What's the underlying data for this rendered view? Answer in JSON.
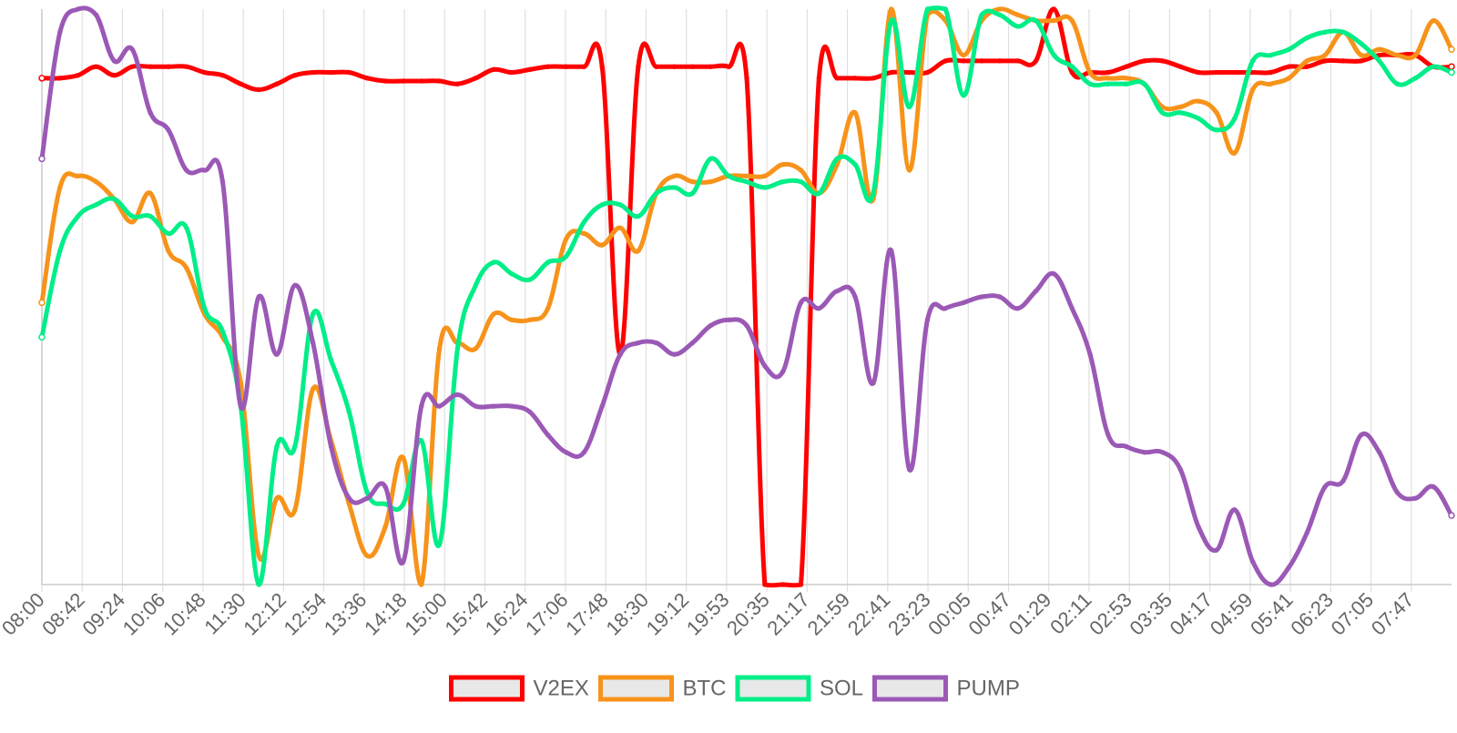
{
  "chart_data": {
    "type": "line",
    "x_tick_labels": [
      "08:00",
      "08:42",
      "09:24",
      "10:06",
      "10:48",
      "11:30",
      "12:12",
      "12:54",
      "13:36",
      "14:18",
      "15:00",
      "15:42",
      "16:24",
      "17:06",
      "17:48",
      "18:30",
      "19:12",
      "19:53",
      "20:35",
      "21:17",
      "21:59",
      "22:41",
      "23:23",
      "00:05",
      "00:47",
      "01:29",
      "02:11",
      "02:53",
      "03:35",
      "04:17",
      "04:59",
      "05:41",
      "06:23",
      "07:05",
      "07:47"
    ],
    "x_range": [
      0,
      70
    ],
    "ylim": [
      0,
      100
    ],
    "y_axis_visible": false,
    "grid": {
      "vertical": true,
      "horizontal": false
    },
    "legend_position": "bottom-center",
    "series": [
      {
        "name": "V2EX",
        "color": "#ff0000",
        "values": [
          88,
          88,
          88.5,
          90,
          88.5,
          90,
          90,
          90,
          90,
          89,
          88.5,
          87,
          86,
          87,
          88.5,
          89,
          89,
          89,
          88,
          87.5,
          87.5,
          87.5,
          87.5,
          87,
          88,
          89.5,
          89,
          89.5,
          90,
          90,
          90,
          90,
          40,
          90,
          90,
          90,
          90,
          90,
          90,
          88,
          0,
          0,
          0,
          88,
          88,
          88,
          88,
          89,
          89,
          89,
          91,
          91,
          91,
          91,
          91,
          91,
          100,
          89,
          89,
          89,
          90,
          91,
          91,
          90,
          89,
          89,
          89,
          89,
          89,
          90,
          90,
          91,
          91,
          91,
          92,
          92,
          92,
          90,
          90
        ]
      },
      {
        "name": "BTC",
        "color": "#f7931a",
        "values": [
          49,
          69,
          71,
          70,
          67,
          63,
          68,
          58,
          55,
          47,
          43,
          35,
          5,
          15,
          13,
          34,
          25,
          14,
          5,
          10,
          22,
          0,
          41,
          42,
          41,
          47,
          46,
          46,
          48,
          60,
          61,
          59,
          62,
          58,
          68,
          71,
          70,
          70,
          71,
          71,
          71,
          73,
          72,
          68,
          73,
          82,
          67,
          100,
          72,
          99,
          98,
          92,
          98,
          100,
          99,
          98,
          98,
          98,
          89,
          88,
          88,
          87,
          83,
          83,
          84,
          82,
          75,
          86,
          87,
          88,
          91,
          92,
          96,
          92,
          93,
          92,
          92,
          98,
          93
        ]
      },
      {
        "name": "SOL",
        "color": "#00ee88",
        "values": [
          43,
          58,
          64,
          66,
          67,
          64,
          64,
          61,
          62,
          48,
          44,
          31,
          0,
          24,
          24,
          47,
          39,
          30,
          16,
          14,
          14,
          25,
          7,
          41,
          52,
          56,
          54,
          53,
          56,
          57,
          63,
          66,
          66,
          64,
          68,
          69,
          68,
          74,
          71,
          70,
          69,
          70,
          70,
          68,
          74,
          73,
          68,
          98,
          83,
          100,
          100,
          85,
          99,
          99,
          97,
          98,
          92,
          90,
          87,
          87,
          87,
          87,
          82,
          82,
          81,
          79,
          81,
          91,
          92,
          93,
          95,
          96,
          96,
          94,
          91,
          87,
          88,
          90,
          89
        ]
      },
      {
        "name": "PUMP",
        "color": "#9b59b6",
        "values": [
          74,
          96,
          100,
          99,
          91,
          93,
          82,
          79,
          72,
          72,
          70,
          31,
          50,
          40,
          52,
          42,
          24,
          15,
          15,
          17,
          4,
          31,
          31,
          33,
          31,
          31,
          31,
          30,
          26,
          23,
          23,
          31,
          40,
          42,
          42,
          40,
          42,
          45,
          46,
          45,
          38,
          37,
          49,
          48,
          51,
          50,
          35,
          58,
          20,
          46,
          48,
          49,
          50,
          50,
          48,
          51,
          54,
          48,
          40,
          26,
          24,
          23,
          23,
          20,
          10,
          6,
          13,
          4,
          0,
          3,
          9,
          17,
          18,
          26,
          23,
          16,
          15,
          17,
          12
        ]
      }
    ]
  }
}
